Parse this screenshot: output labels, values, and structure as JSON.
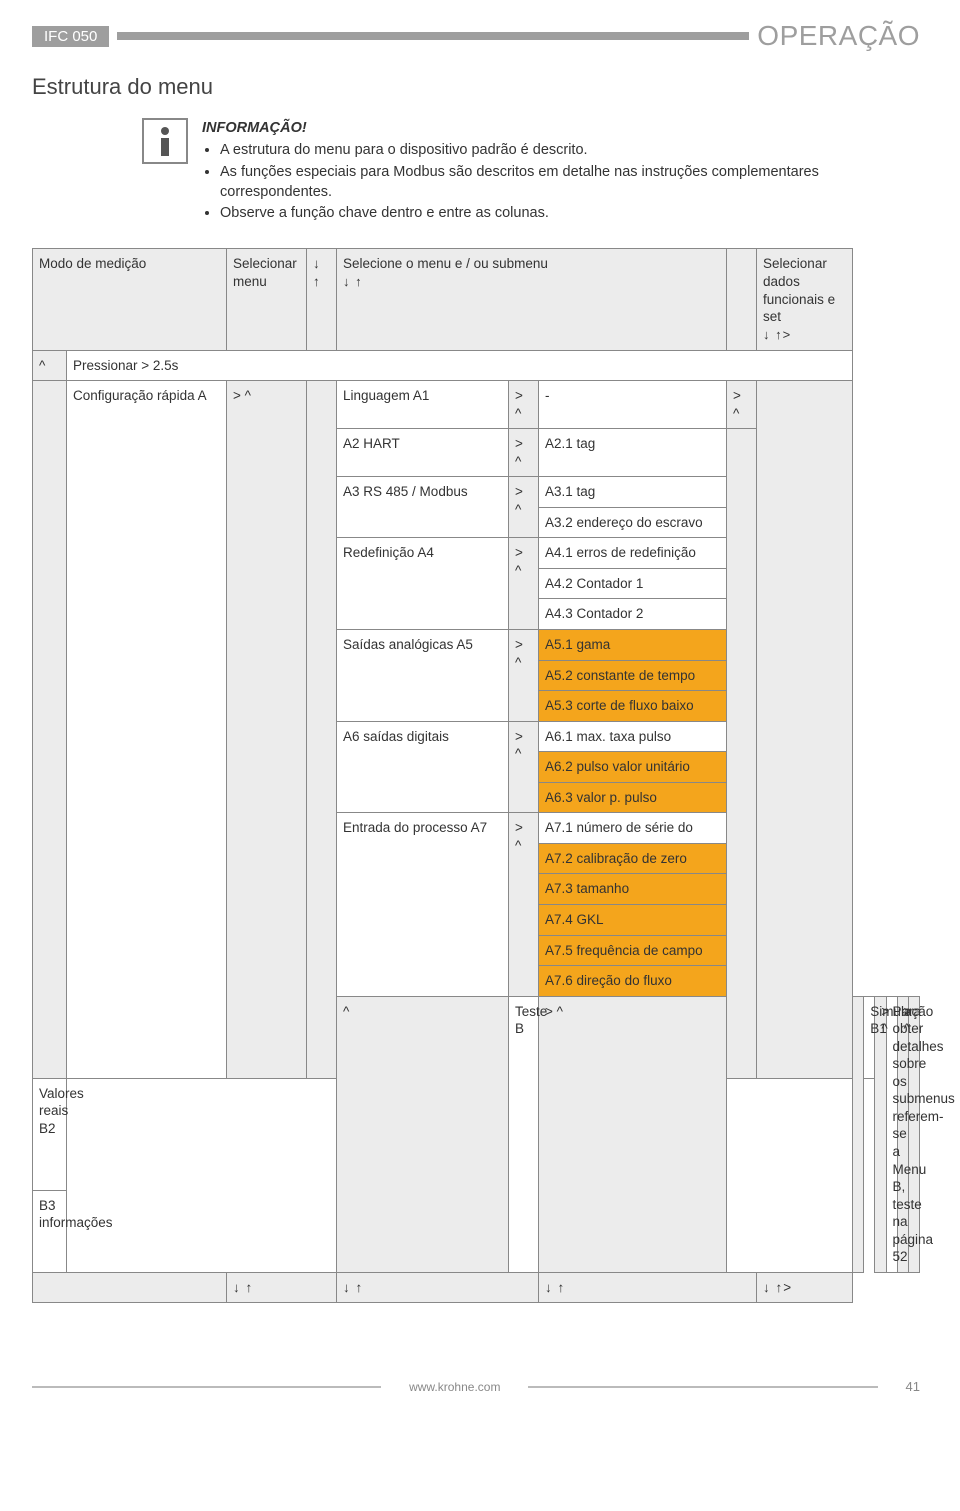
{
  "header": {
    "doc_code": "IFC 050",
    "section_title": "OPERAÇÃO"
  },
  "heading": "Estrutura do menu",
  "info": {
    "title": "INFORMAÇÃO!",
    "bullets": [
      "A estrutura do menu para o dispositivo padrão é descrito.",
      "As funções especiais para Modbus são descritos em detalhe nas instruções complementares correspondentes.",
      "Observe a função chave dentro e entre as colunas."
    ]
  },
  "table": {
    "hdr": {
      "c1": "Modo de medição",
      "c2": "Selecionar menu",
      "c2_sym": "↓\n↑",
      "c3": "Selecione o menu e / ou submenu",
      "c3_sym": "↓ ↑",
      "c4": "Selecionar dados funcionais e set",
      "c4_sym": "↓ ↑>"
    },
    "row_press": {
      "caret": "^",
      "label": "Pressionar > 2.5s"
    },
    "row_a": {
      "label": "Configuração rápida  A",
      "nav": "> ^",
      "items": [
        {
          "l": "Linguagem A1",
          "n": "> ^",
          "subs": [
            {
              "t": "-",
              "hl": false
            }
          ],
          "tail": "> ^"
        },
        {
          "l": "A2 HART",
          "n": "> ^",
          "subs": [
            {
              "t": "A2.1 tag",
              "hl": false
            }
          ]
        },
        {
          "l": "A3 RS 485 / Modbus",
          "n": "> ^",
          "subs": [
            {
              "t": "A3.1 tag",
              "hl": false
            },
            {
              "t": "A3.2 endereço do escravo",
              "hl": false
            }
          ]
        },
        {
          "l": "Redefinição A4",
          "n": "> ^",
          "subs": [
            {
              "t": "A4.1 erros de redefinição",
              "hl": false
            },
            {
              "t": "A4.2 Contador 1",
              "hl": false
            },
            {
              "t": "A4.3 Contador 2",
              "hl": false
            }
          ]
        },
        {
          "l": "Saídas analógicas A5",
          "n": "> ^",
          "subs": [
            {
              "t": "A5.1 gama",
              "hl": true
            },
            {
              "t": "A5.2 constante de tempo",
              "hl": true
            },
            {
              "t": "A5.3 corte de fluxo baixo",
              "hl": true
            }
          ]
        },
        {
          "l": "A6 saídas digitais",
          "n": "> ^",
          "subs": [
            {
              "t": "A6.1 max. taxa pulso",
              "hl": false
            },
            {
              "t": "A6.2 pulso valor unitário",
              "hl": true
            },
            {
              "t": "A6.3 valor p. pulso",
              "hl": true
            }
          ]
        },
        {
          "l": "Entrada do processo A7",
          "n": "> ^",
          "subs": [
            {
              "t": "A7.1 número de série do",
              "hl": false
            },
            {
              "t": "A7.2 calibração de zero",
              "hl": true
            },
            {
              "t": "A7.3 tamanho",
              "hl": true
            },
            {
              "t": "A7.4 GKL",
              "hl": true
            },
            {
              "t": "A7.5 frequência de campo",
              "hl": true
            },
            {
              "t": "A7.6 direção do fluxo",
              "hl": true
            }
          ]
        }
      ]
    },
    "row_b": {
      "caret": "^",
      "label": "Teste B",
      "nav": "> ^",
      "items": [
        {
          "l": "Simulação B1"
        },
        {
          "l": "Valores reais B2"
        },
        {
          "l": "B3 informações"
        }
      ],
      "sub_nav": "> ^",
      "detail": "Para obter detalhes sobre os submenus referem-se a Menu B, teste na página 52",
      "tail": "> ^"
    },
    "footer_row": {
      "a": "↓ ↑",
      "b": "↓ ↑",
      "c": "↓ ↑",
      "d": "↓ ↑>"
    }
  },
  "footer": {
    "url": "www.krohne.com",
    "page": "41"
  }
}
